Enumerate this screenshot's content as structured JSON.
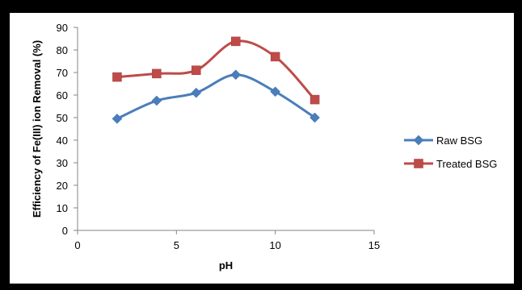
{
  "chart_data": {
    "type": "line",
    "title": "",
    "xlabel": "pH",
    "ylabel": "Efficiency of Fe(III) ion Removal (%)",
    "xlim": [
      0,
      15
    ],
    "ylim": [
      0,
      90
    ],
    "x_ticks": [
      0,
      5,
      10,
      15
    ],
    "y_ticks": [
      0,
      10,
      20,
      30,
      40,
      50,
      60,
      70,
      80,
      90
    ],
    "grid": false,
    "legend_position": "right",
    "series": [
      {
        "name": "Raw BSG",
        "color": "#4a7ebb",
        "marker": "diamond",
        "x": [
          2,
          4,
          6,
          8,
          10,
          12
        ],
        "y": [
          49.5,
          57.5,
          61,
          69,
          61.5,
          50
        ]
      },
      {
        "name": "Treated BSG",
        "color": "#be4b48",
        "marker": "square",
        "x": [
          2,
          4,
          6,
          8,
          10,
          12
        ],
        "y": [
          68,
          69.5,
          71,
          83.8,
          77,
          58
        ]
      }
    ]
  }
}
